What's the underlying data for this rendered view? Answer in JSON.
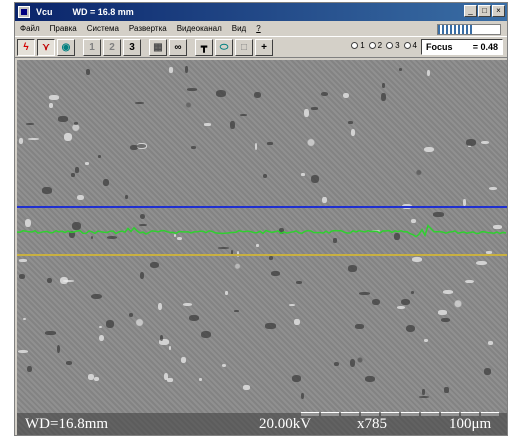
{
  "window": {
    "app_name": "Vcu",
    "title_wd": "WD = 16.8 mm",
    "controls": [
      "minimize-icon",
      "maximize-icon",
      "close-icon"
    ]
  },
  "menu": {
    "items": [
      "Файл",
      "Правка",
      "Система",
      "Развертка",
      "Видеоканал",
      "Вид",
      "?"
    ]
  },
  "toolbar": {
    "buttons": [
      {
        "name": "lightning-icon",
        "glyph": "ϟ",
        "color": "#d40000",
        "pressed": true
      },
      {
        "name": "detector-icon",
        "glyph": "⋎",
        "color": "#c00000",
        "pressed": true
      },
      {
        "name": "eye-icon",
        "glyph": "◉",
        "color": "#008080",
        "pressed": false
      },
      {
        "name": "channel-1-button",
        "glyph": "1",
        "color": "#808080",
        "pressed": false
      },
      {
        "name": "channel-2-button",
        "glyph": "2",
        "color": "#808080",
        "pressed": false
      },
      {
        "name": "channel-3-button",
        "glyph": "3",
        "color": "#000000",
        "pressed": false
      },
      {
        "name": "grid-icon",
        "glyph": "▦",
        "color": "#505050",
        "pressed": false
      },
      {
        "name": "binoculars-icon",
        "glyph": "∞",
        "color": "#000000",
        "pressed": false
      },
      {
        "name": "line-scan-icon",
        "glyph": "┳",
        "color": "#000000",
        "pressed": false
      },
      {
        "name": "lens-icon",
        "glyph": "⬭",
        "color": "#008080",
        "pressed": false
      },
      {
        "name": "blank-square-icon",
        "glyph": "□",
        "color": "#808080",
        "pressed": false
      },
      {
        "name": "crosshair-icon",
        "glyph": "+",
        "color": "#000000",
        "pressed": false
      }
    ],
    "radio_options": [
      "1",
      "2",
      "3",
      "4"
    ],
    "focus_label": "Focus",
    "focus_value": "= 0.48"
  },
  "image": {
    "wd": "WD=16.8mm",
    "kv": "20.00kV",
    "mag": "x785",
    "scale": "100μm",
    "blue_line_color": "#2030d0",
    "green_line_color": "#30d030",
    "yellow_line_color": "#c8b040"
  }
}
